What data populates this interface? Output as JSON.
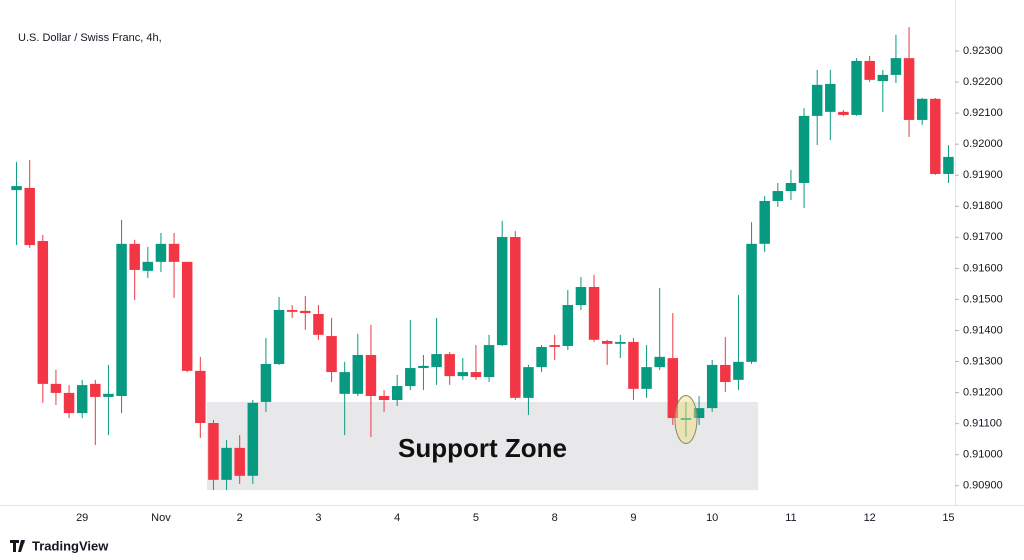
{
  "chart_data": {
    "type": "candlestick",
    "title": "U.S. Dollar / Swiss Franc, 4h,",
    "brand": "TradingView",
    "categories": [
      null,
      null,
      null,
      null,
      null,
      "29",
      null,
      null,
      null,
      null,
      null,
      "Nov",
      null,
      null,
      null,
      null,
      null,
      "2",
      null,
      null,
      null,
      null,
      null,
      "3",
      null,
      null,
      null,
      null,
      null,
      "4",
      null,
      null,
      null,
      null,
      null,
      "5",
      null,
      null,
      null,
      null,
      null,
      "8",
      null,
      null,
      null,
      null,
      null,
      "9",
      null,
      null,
      null,
      null,
      null,
      "10",
      null,
      null,
      null,
      null,
      null,
      "11",
      null,
      null,
      null,
      null,
      null,
      "12",
      null,
      null,
      null,
      null,
      null,
      "15"
    ],
    "open": [
      0.91852,
      0.91859,
      0.91688,
      0.91228,
      0.91199,
      0.91134,
      0.91228,
      0.91186,
      0.91189,
      0.91679,
      0.91592,
      0.91621,
      0.91679,
      0.91621,
      0.9127,
      0.91102,
      0.90919,
      0.91022,
      0.90932,
      0.9117,
      0.91292,
      0.91466,
      0.91463,
      0.91453,
      0.91382,
      0.91196,
      0.91196,
      0.91321,
      0.91189,
      0.91176,
      0.91221,
      0.91279,
      0.91282,
      0.91324,
      0.91253,
      0.91266,
      0.9125,
      0.91353,
      0.91701,
      0.91183,
      0.91282,
      0.91353,
      0.9135,
      0.91482,
      0.9154,
      0.91366,
      0.91357,
      0.91363,
      0.91212,
      0.91282,
      0.91311,
      0.91112,
      0.91118,
      0.9115,
      0.91289,
      0.91241,
      0.91299,
      0.91679,
      0.91817,
      0.91849,
      0.91875,
      0.92091,
      0.92104,
      0.92104,
      0.92094,
      0.92268,
      0.92203,
      0.92223,
      0.92277,
      0.92078,
      0.92146,
      0.91904
    ],
    "high": [
      0.91943,
      0.91949,
      0.91708,
      0.91273,
      0.91224,
      0.91241,
      0.91241,
      0.91289,
      0.91756,
      0.91692,
      0.91669,
      0.91714,
      0.91714,
      0.91621,
      0.91315,
      0.91112,
      0.91047,
      0.91063,
      0.91176,
      0.91376,
      0.91508,
      0.91482,
      0.91511,
      0.91482,
      0.9144,
      0.91299,
      0.91389,
      0.91418,
      0.91208,
      0.91257,
      0.91434,
      0.91321,
      0.9144,
      0.91331,
      0.91311,
      0.91353,
      0.91386,
      0.91753,
      0.9172,
      0.91289,
      0.91353,
      0.91386,
      0.9153,
      0.91572,
      0.91579,
      0.9137,
      0.91386,
      0.91376,
      0.91353,
      0.91537,
      0.91456,
      0.9117,
      0.91189,
      0.91305,
      0.91379,
      0.91514,
      0.91749,
      0.91833,
      0.91875,
      0.91917,
      0.92116,
      0.92239,
      0.92239,
      0.9211,
      0.92277,
      0.92284,
      0.92239,
      0.92352,
      0.92377,
      0.92149,
      0.92149,
      0.91997
    ],
    "low": [
      0.91675,
      0.91666,
      0.91167,
      0.9116,
      0.91118,
      0.91118,
      0.91031,
      0.91063,
      0.91134,
      0.91498,
      0.91569,
      0.91588,
      0.91505,
      0.91266,
      0.91054,
      0.90886,
      0.90886,
      0.90906,
      0.90906,
      0.91138,
      0.91289,
      0.9144,
      0.91402,
      0.9137,
      0.91234,
      0.91063,
      0.91189,
      0.91057,
      0.91138,
      0.91157,
      0.91208,
      0.91208,
      0.91225,
      0.91225,
      0.91241,
      0.91241,
      0.91234,
      0.9135,
      0.91176,
      0.91128,
      0.91266,
      0.91305,
      0.91337,
      0.91466,
      0.91363,
      0.91289,
      0.91311,
      0.91176,
      0.91183,
      0.91273,
      0.91096,
      0.91057,
      0.91096,
      0.91138,
      0.91202,
      0.91208,
      0.91292,
      0.91653,
      0.91798,
      0.9182,
      0.91794,
      0.91997,
      0.92013,
      0.92091,
      0.92091,
      0.922,
      0.92104,
      0.92197,
      0.92023,
      0.92062,
      0.91901,
      0.91875
    ],
    "close": [
      0.91865,
      0.91675,
      0.91228,
      0.91199,
      0.91134,
      0.91224,
      0.91186,
      0.91196,
      0.91679,
      0.91595,
      0.91621,
      0.91679,
      0.91621,
      0.9127,
      0.91102,
      0.90919,
      0.91022,
      0.90932,
      0.91167,
      0.91292,
      0.91466,
      0.9146,
      0.91456,
      0.91386,
      0.91266,
      0.91266,
      0.91321,
      0.91189,
      0.91176,
      0.91221,
      0.91279,
      0.91286,
      0.91324,
      0.91253,
      0.91266,
      0.9125,
      0.91353,
      0.91701,
      0.91183,
      0.91282,
      0.91347,
      0.91347,
      0.91482,
      0.9154,
      0.9137,
      0.91357,
      0.91363,
      0.91212,
      0.91282,
      0.91315,
      0.91118,
      0.91118,
      0.9115,
      0.91289,
      0.91234,
      0.91299,
      0.91679,
      0.91817,
      0.91849,
      0.91875,
      0.92091,
      0.92191,
      0.92194,
      0.92094,
      0.92268,
      0.92207,
      0.92223,
      0.92277,
      0.92078,
      0.92146,
      0.91904,
      0.91959
    ],
    "up_color": "#089981",
    "down_color": "#f23645",
    "ylim": [
      0.90838,
      0.92432
    ],
    "yticks": [
      {
        "value": 0.909,
        "label": "0.90900"
      },
      {
        "value": 0.91,
        "label": "0.91000"
      },
      {
        "value": 0.911,
        "label": "0.91100"
      },
      {
        "value": 0.912,
        "label": "0.91200"
      },
      {
        "value": 0.913,
        "label": "0.91300"
      },
      {
        "value": 0.914,
        "label": "0.91400"
      },
      {
        "value": 0.915,
        "label": "0.91500"
      },
      {
        "value": 0.916,
        "label": "0.91600"
      },
      {
        "value": 0.917,
        "label": "0.91700"
      },
      {
        "value": 0.918,
        "label": "0.91800"
      },
      {
        "value": 0.919,
        "label": "0.91900"
      },
      {
        "value": 0.92,
        "label": "0.92000"
      },
      {
        "value": 0.921,
        "label": "0.92100"
      },
      {
        "value": 0.922,
        "label": "0.92200"
      },
      {
        "value": 0.923,
        "label": "0.92300"
      }
    ],
    "annotations": [
      {
        "text": "Support Zone",
        "y_from": 0.90886,
        "y_to": 0.9117,
        "x_from": 15,
        "x_to": 56
      }
    ],
    "highlight_index": 51
  }
}
